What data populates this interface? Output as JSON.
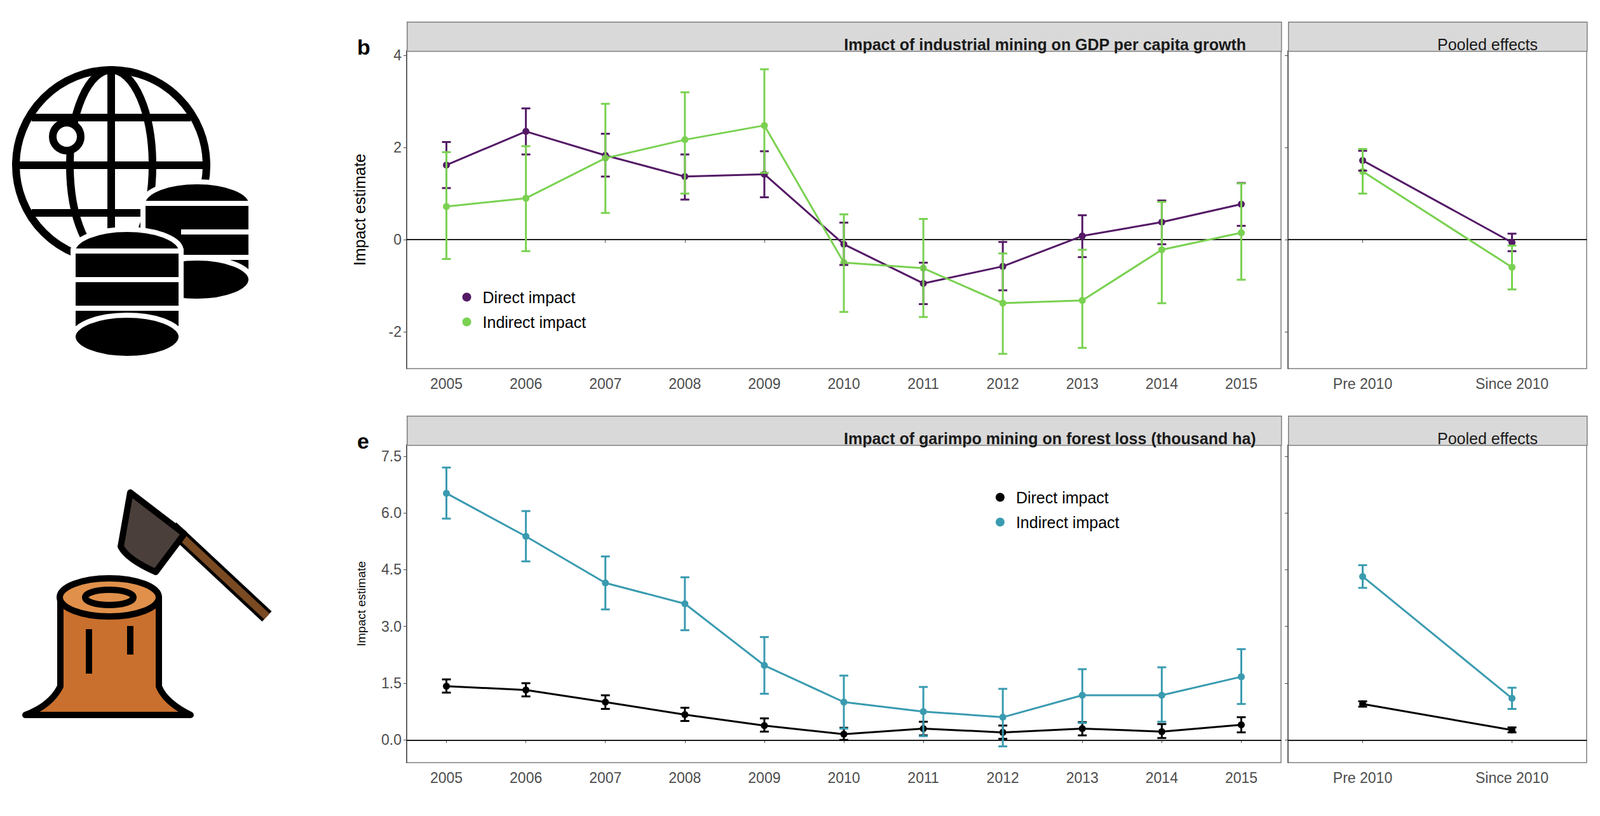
{
  "chart_data": [
    {
      "panel_label": "b",
      "type": "line",
      "title": "Impact of industrial mining on GDP per capita growth",
      "y_label": "Impact estimate",
      "categories": [
        "2005",
        "2006",
        "2007",
        "2008",
        "2009",
        "2010",
        "2011",
        "2012",
        "2013",
        "2014",
        "2015"
      ],
      "ylim": [
        -2.8,
        4.1
      ],
      "yticks": [
        -2,
        0,
        2,
        4
      ],
      "grid": false,
      "legend": "lower left",
      "reference_line": 0,
      "marker": "circle",
      "series": [
        {
          "name": "Direct impact",
          "color": "#541a66",
          "values": [
            1.62,
            2.35,
            1.83,
            1.37,
            1.42,
            -0.1,
            -0.95,
            -0.58,
            0.08,
            0.38,
            0.77
          ],
          "error_low": [
            1.12,
            1.85,
            1.37,
            0.87,
            0.92,
            -0.55,
            -1.4,
            -1.1,
            -0.38,
            -0.1,
            0.3
          ],
          "error_high": [
            2.12,
            2.85,
            2.3,
            1.85,
            1.92,
            0.37,
            -0.5,
            -0.05,
            0.53,
            0.85,
            1.23
          ]
        },
        {
          "name": "Indirect impact",
          "color": "#7ad151",
          "values": [
            0.72,
            0.9,
            1.77,
            2.17,
            2.48,
            -0.5,
            -0.62,
            -1.38,
            -1.32,
            -0.22,
            0.15
          ],
          "error_low": [
            -0.42,
            -0.25,
            0.58,
            1.0,
            1.45,
            -1.57,
            -1.68,
            -2.48,
            -2.35,
            -1.38,
            -0.87
          ],
          "error_high": [
            1.9,
            2.03,
            2.95,
            3.2,
            3.7,
            0.55,
            0.45,
            -0.3,
            -0.22,
            0.82,
            1.22
          ]
        }
      ]
    },
    {
      "type": "line",
      "title": "Pooled effects",
      "categories": [
        "Pre 2010",
        "Since 2010"
      ],
      "ylim": [
        -2.8,
        4.1
      ],
      "yticks": [
        -2,
        0,
        2,
        4
      ],
      "grid": false,
      "tick_labels": "x",
      "reference_line": 0,
      "marker": "circle",
      "series": [
        {
          "name": "Direct impact",
          "color": "#541a66",
          "values": [
            1.72,
            -0.06
          ],
          "error_low": [
            1.5,
            -0.25
          ],
          "error_high": [
            1.93,
            0.13
          ]
        },
        {
          "name": "Indirect impact",
          "color": "#7ad151",
          "values": [
            1.48,
            -0.6
          ],
          "error_low": [
            1.0,
            -1.08
          ],
          "error_high": [
            1.97,
            -0.13
          ]
        }
      ]
    },
    {
      "panel_label": "e",
      "type": "line",
      "title": "Impact of garimpo mining on forest loss (thousand ha)",
      "y_label": "Impact estimate",
      "categories": [
        "2005",
        "2006",
        "2007",
        "2008",
        "2009",
        "2010",
        "2011",
        "2012",
        "2013",
        "2014",
        "2015"
      ],
      "ylim": [
        -0.6,
        7.8
      ],
      "yticks": [
        {
          "value": 0,
          "label": "0.0"
        },
        1.5,
        {
          "value": 3,
          "label": "3.0"
        },
        4.5,
        {
          "value": 6,
          "label": "6.0"
        },
        7.5
      ],
      "grid": false,
      "legend": "upper right",
      "reference_line": 0,
      "marker": "circle",
      "series": [
        {
          "name": "Direct impact",
          "color": "#000000",
          "values": [
            1.42,
            1.32,
            1.0,
            0.67,
            0.38,
            0.15,
            0.3,
            0.2,
            0.3,
            0.22,
            0.4
          ],
          "error_low": [
            1.25,
            1.15,
            0.82,
            0.5,
            0.22,
            0.0,
            0.12,
            0.03,
            0.12,
            0.05,
            0.2
          ],
          "error_high": [
            1.6,
            1.5,
            1.18,
            0.85,
            0.57,
            0.32,
            0.48,
            0.38,
            0.47,
            0.42,
            0.6
          ]
        },
        {
          "name": "Indirect impact",
          "color": "#3a9bb0",
          "values": [
            6.52,
            5.38,
            4.15,
            3.6,
            1.97,
            1.0,
            0.75,
            0.6,
            1.18,
            1.18,
            1.67
          ],
          "error_low": [
            5.85,
            4.72,
            3.45,
            2.9,
            1.22,
            0.3,
            0.1,
            -0.17,
            0.45,
            0.48,
            0.95
          ],
          "error_high": [
            7.2,
            6.05,
            4.85,
            4.3,
            2.72,
            1.7,
            1.4,
            1.35,
            1.87,
            1.92,
            2.4
          ]
        }
      ]
    },
    {
      "type": "line",
      "title": "Pooled effects",
      "categories": [
        "Pre 2010",
        "Since 2010"
      ],
      "ylim": [
        -0.6,
        7.8
      ],
      "yticks": [
        {
          "value": 0,
          "label": "0.0"
        },
        1.5,
        {
          "value": 3,
          "label": "3.0"
        },
        4.5,
        {
          "value": 6,
          "label": "6.0"
        },
        7.5
      ],
      "grid": false,
      "tick_labels": "x",
      "reference_line": 0,
      "marker": "circle",
      "series": [
        {
          "name": "Direct impact",
          "color": "#000000",
          "values": [
            0.95,
            0.26
          ],
          "error_low": [
            0.88,
            0.2
          ],
          "error_high": [
            1.02,
            0.33
          ]
        },
        {
          "name": "Indirect impact",
          "color": "#3a9bb0",
          "values": [
            4.32,
            1.1
          ],
          "error_low": [
            4.02,
            0.82
          ],
          "error_high": [
            4.62,
            1.38
          ]
        }
      ]
    }
  ]
}
